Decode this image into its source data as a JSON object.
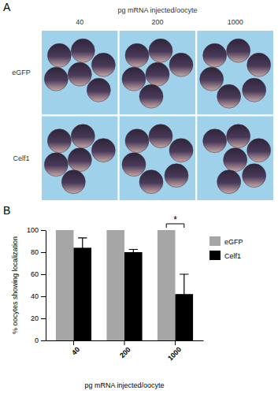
{
  "figure": {
    "panel_labels": [
      "A",
      "B"
    ]
  },
  "panel_a": {
    "title": "pg mRNA injected/oocyte",
    "columns": [
      "40",
      "200",
      "1000"
    ],
    "rows": [
      "eGFP",
      "Celf1"
    ]
  },
  "chart_data": {
    "type": "bar",
    "x_label": "pg mRNA injected/oocyte",
    "y_label": "% oocytes showing localization",
    "categories": [
      "40",
      "200",
      "1000"
    ],
    "series": [
      {
        "name": "eGFP",
        "color": "#a6a6a6",
        "values": [
          100,
          100,
          100
        ]
      },
      {
        "name": "Celf1",
        "color": "#000000",
        "values": [
          84,
          80,
          42
        ],
        "errors": [
          9,
          2.5,
          18
        ]
      }
    ],
    "ylim": [
      0,
      100
    ],
    "yticks": [
      0,
      20,
      40,
      60,
      80,
      100
    ],
    "legend": "right",
    "annotations": [
      {
        "text": "*",
        "category": "1000"
      }
    ]
  }
}
